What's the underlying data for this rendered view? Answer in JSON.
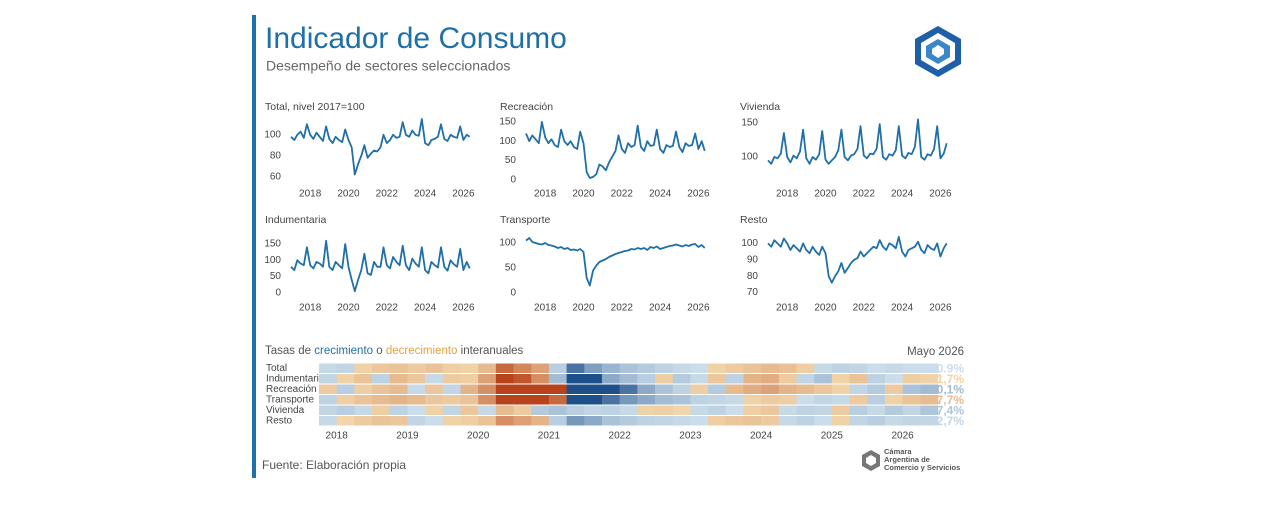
{
  "header": {
    "title": "Indicador de Consumo",
    "subtitle": "Desempeño de sectores seleccionados"
  },
  "footer": {
    "source": "Fuente: Elaboración propia",
    "org": [
      "Cámara",
      "Argentina de",
      "Comercio y Servicios"
    ]
  },
  "chart_data": [
    {
      "type": "line",
      "color": "#1f6fa8",
      "x": [
        2017,
        2017.17,
        2017.33,
        2017.5,
        2017.67,
        2017.83,
        2018,
        2018.17,
        2018.33,
        2018.5,
        2018.67,
        2018.83,
        2019,
        2019.17,
        2019.33,
        2019.5,
        2019.67,
        2019.83,
        2020,
        2020.17,
        2020.33,
        2020.5,
        2020.67,
        2020.83,
        2021,
        2021.17,
        2021.33,
        2021.5,
        2021.67,
        2021.83,
        2022,
        2022.17,
        2022.33,
        2022.5,
        2022.67,
        2022.83,
        2023,
        2023.17,
        2023.33,
        2023.5,
        2023.67,
        2023.83,
        2024,
        2024.17,
        2024.33,
        2024.5,
        2024.67,
        2024.83,
        2025,
        2025.17,
        2025.33,
        2025.5,
        2025.67,
        2025.83,
        2026,
        2026.17,
        2026.33
      ],
      "xlim": [
        2017,
        2026.5
      ],
      "xticks": [
        2018,
        2020,
        2022,
        2024,
        2026
      ],
      "panels": [
        {
          "title": "Total, nivel 2017=100",
          "ylim": [
            52,
            116
          ],
          "yticks": [
            60,
            80,
            100
          ],
          "values": [
            98,
            95,
            100,
            103,
            97,
            110,
            100,
            96,
            102,
            98,
            94,
            108,
            96,
            92,
            98,
            95,
            93,
            105,
            95,
            88,
            62,
            72,
            80,
            90,
            78,
            82,
            85,
            84,
            88,
            100,
            92,
            95,
            100,
            97,
            98,
            112,
            100,
            98,
            104,
            100,
            99,
            115,
            92,
            90,
            95,
            96,
            98,
            110,
            96,
            94,
            100,
            98,
            97,
            108,
            95,
            100,
            98
          ]
        },
        {
          "title": "Recreación",
          "ylim": [
            -13,
            160
          ],
          "yticks": [
            0,
            50,
            100,
            150
          ],
          "values": [
            120,
            100,
            115,
            105,
            95,
            150,
            110,
            95,
            105,
            90,
            85,
            130,
            100,
            90,
            100,
            85,
            80,
            125,
            95,
            20,
            5,
            8,
            15,
            40,
            35,
            25,
            45,
            60,
            75,
            115,
            80,
            70,
            95,
            85,
            90,
            140,
            85,
            75,
            100,
            88,
            90,
            130,
            80,
            70,
            90,
            85,
            88,
            125,
            85,
            72,
            95,
            88,
            90,
            120,
            80,
            100,
            75
          ]
        },
        {
          "title": "Vivienda",
          "ylim": [
            59,
            157
          ],
          "yticks": [
            100,
            150
          ],
          "values": [
            95,
            90,
            100,
            98,
            105,
            135,
            100,
            92,
            102,
            98,
            108,
            140,
            98,
            90,
            100,
            96,
            104,
            138,
            96,
            90,
            95,
            100,
            110,
            140,
            100,
            95,
            102,
            104,
            112,
            145,
            102,
            98,
            105,
            104,
            112,
            148,
            100,
            96,
            104,
            102,
            110,
            145,
            102,
            98,
            106,
            104,
            115,
            155,
            100,
            96,
            104,
            102,
            112,
            145,
            98,
            105,
            120
          ]
        },
        {
          "title": "Indumentaria",
          "ylim": [
            -19,
            187
          ],
          "yticks": [
            0,
            50,
            100,
            150
          ],
          "values": [
            80,
            70,
            100,
            90,
            85,
            140,
            85,
            75,
            95,
            90,
            80,
            160,
            80,
            70,
            95,
            85,
            75,
            150,
            80,
            40,
            5,
            40,
            70,
            120,
            60,
            55,
            95,
            80,
            80,
            140,
            85,
            75,
            110,
            95,
            85,
            145,
            85,
            70,
            105,
            90,
            80,
            140,
            70,
            60,
            95,
            85,
            78,
            140,
            80,
            68,
            100,
            88,
            80,
            135,
            70,
            95,
            75
          ]
        },
        {
          "title": "Transporte",
          "ylim": [
            -12,
            122
          ],
          "yticks": [
            0,
            50,
            100
          ],
          "values": [
            105,
            110,
            102,
            100,
            98,
            97,
            100,
            96,
            95,
            93,
            90,
            92,
            88,
            90,
            86,
            87,
            85,
            88,
            82,
            30,
            15,
            45,
            55,
            62,
            65,
            68,
            72,
            75,
            78,
            80,
            82,
            84,
            85,
            88,
            87,
            90,
            88,
            90,
            86,
            92,
            90,
            93,
            88,
            90,
            92,
            94,
            95,
            97,
            95,
            93,
            96,
            94,
            97,
            98,
            92,
            96,
            90
          ]
        },
        {
          "title": "Resto",
          "ylim": [
            66,
            107
          ],
          "yticks": [
            70,
            80,
            90,
            100
          ],
          "values": [
            100,
            98,
            102,
            100,
            98,
            103,
            100,
            96,
            99,
            97,
            95,
            100,
            96,
            94,
            98,
            95,
            93,
            98,
            94,
            80,
            76,
            80,
            83,
            88,
            82,
            85,
            88,
            90,
            91,
            95,
            92,
            94,
            96,
            98,
            97,
            102,
            98,
            96,
            100,
            99,
            97,
            104,
            95,
            92,
            96,
            97,
            98,
            101,
            96,
            94,
            99,
            97,
            96,
            100,
            92,
            97,
            100
          ]
        }
      ]
    },
    {
      "type": "heatmap",
      "title": [
        {
          "text": "Tasas de "
        },
        {
          "text": "crecimiento",
          "color": "#1f6fa8"
        },
        {
          "text": " o "
        },
        {
          "text": "decrecimiento",
          "color": "#e8a13a"
        },
        {
          "text": " interanuales"
        }
      ],
      "period": "Mayo 2026",
      "positive_color": "#1d4f8a",
      "negative_color": "#b8431a",
      "x": [
        2017.75,
        2018,
        2018.25,
        2018.5,
        2018.75,
        2019,
        2019.25,
        2019.5,
        2019.75,
        2020,
        2020.25,
        2020.5,
        2020.75,
        2021,
        2021.25,
        2021.5,
        2021.75,
        2022,
        2022.25,
        2022.5,
        2022.75,
        2023,
        2023.25,
        2023.5,
        2023.75,
        2024,
        2024.25,
        2024.5,
        2024.75,
        2025,
        2025.25,
        2025.5,
        2025.75,
        2026,
        2026.25
      ],
      "xlim": [
        2017.75,
        2026.5
      ],
      "xticks": [
        2018,
        2019,
        2020,
        2021,
        2022,
        2023,
        2024,
        2025,
        2026
      ],
      "rows": [
        {
          "name": "Total",
          "values": [
            2,
            3,
            -2,
            -5,
            -6,
            -4,
            -6,
            -3,
            -2,
            -8,
            -30,
            -22,
            -15,
            5,
            30,
            18,
            12,
            8,
            6,
            4,
            2,
            1,
            -2,
            -4,
            -6,
            -8,
            -7,
            -3,
            2,
            4,
            3,
            1,
            2,
            1,
            0.9
          ],
          "value_labels": [
            null,
            null,
            null,
            null,
            null,
            null,
            null,
            null,
            null,
            null,
            null,
            null,
            null,
            null,
            null,
            null,
            null,
            null,
            null,
            null,
            null,
            null,
            null,
            null,
            null,
            null,
            null,
            null,
            null,
            null,
            null,
            null,
            null,
            null,
            "0.9%"
          ]
        },
        {
          "name": "Indumentaria",
          "values": [
            3,
            -2,
            -6,
            4,
            -8,
            -5,
            2,
            -4,
            -3,
            -15,
            -60,
            -35,
            -20,
            10,
            80,
            40,
            15,
            10,
            5,
            -3,
            6,
            2,
            -5,
            4,
            -10,
            -12,
            -4,
            3,
            8,
            -2,
            -6,
            4,
            1,
            -3,
            -1.7
          ],
          "value_labels": [
            null,
            null,
            null,
            null,
            null,
            null,
            null,
            null,
            null,
            null,
            null,
            null,
            null,
            null,
            null,
            null,
            null,
            null,
            null,
            null,
            null,
            null,
            null,
            null,
            null,
            null,
            null,
            null,
            null,
            null,
            null,
            null,
            null,
            null,
            "-1,7%"
          ]
        },
        {
          "name": "Recreación",
          "values": [
            -4,
            5,
            -3,
            -6,
            -8,
            2,
            -5,
            3,
            -10,
            -20,
            -85,
            -80,
            -70,
            -40,
            150,
            200,
            120,
            30,
            15,
            8,
            4,
            -3,
            6,
            -8,
            -12,
            -15,
            -10,
            -8,
            -5,
            -2,
            3,
            6,
            -4,
            8,
            10.1
          ],
          "value_labels": [
            null,
            null,
            null,
            null,
            null,
            null,
            null,
            null,
            null,
            null,
            null,
            null,
            null,
            null,
            null,
            null,
            null,
            null,
            null,
            null,
            null,
            null,
            null,
            null,
            null,
            null,
            null,
            null,
            null,
            null,
            null,
            null,
            null,
            null,
            "10,1%"
          ]
        },
        {
          "name": "Transporte",
          "values": [
            4,
            -3,
            -6,
            -8,
            -10,
            -8,
            -5,
            -4,
            -6,
            -20,
            -65,
            -50,
            -40,
            -30,
            60,
            50,
            30,
            20,
            15,
            10,
            8,
            4,
            3,
            2,
            -2,
            -4,
            -3,
            1,
            3,
            2,
            -4,
            5,
            -2,
            -6,
            -7.7
          ],
          "value_labels": [
            null,
            null,
            null,
            null,
            null,
            null,
            null,
            null,
            null,
            null,
            null,
            null,
            null,
            null,
            null,
            null,
            null,
            null,
            null,
            null,
            null,
            null,
            null,
            null,
            null,
            null,
            null,
            null,
            null,
            null,
            null,
            null,
            null,
            null,
            "-7,7%"
          ]
        },
        {
          "name": "Vivienda",
          "values": [
            3,
            5,
            2,
            -3,
            4,
            1,
            -2,
            3,
            -5,
            2,
            -8,
            -4,
            6,
            8,
            5,
            3,
            4,
            2,
            -2,
            -3,
            -1,
            2,
            4,
            1,
            -3,
            -5,
            2,
            4,
            3,
            -4,
            5,
            2,
            6,
            3,
            7.4
          ],
          "value_labels": [
            null,
            null,
            null,
            null,
            null,
            null,
            null,
            null,
            null,
            null,
            null,
            null,
            null,
            null,
            null,
            null,
            null,
            null,
            null,
            null,
            null,
            null,
            null,
            null,
            null,
            null,
            null,
            null,
            null,
            null,
            null,
            null,
            null,
            null,
            "7,4%"
          ]
        },
        {
          "name": "Resto",
          "values": [
            2,
            -1,
            -4,
            -6,
            -5,
            3,
            1,
            -2,
            -3,
            -6,
            -20,
            -15,
            -10,
            5,
            20,
            15,
            8,
            6,
            4,
            3,
            2,
            1,
            -3,
            -5,
            -6,
            -4,
            2,
            4,
            1,
            -2,
            3,
            5,
            2,
            3,
            2.7
          ],
          "value_labels": [
            null,
            null,
            null,
            null,
            null,
            null,
            null,
            null,
            null,
            null,
            null,
            null,
            null,
            null,
            null,
            null,
            null,
            null,
            null,
            null,
            null,
            null,
            null,
            null,
            null,
            null,
            null,
            null,
            null,
            null,
            null,
            null,
            null,
            null,
            "2,7%"
          ]
        }
      ]
    }
  ]
}
